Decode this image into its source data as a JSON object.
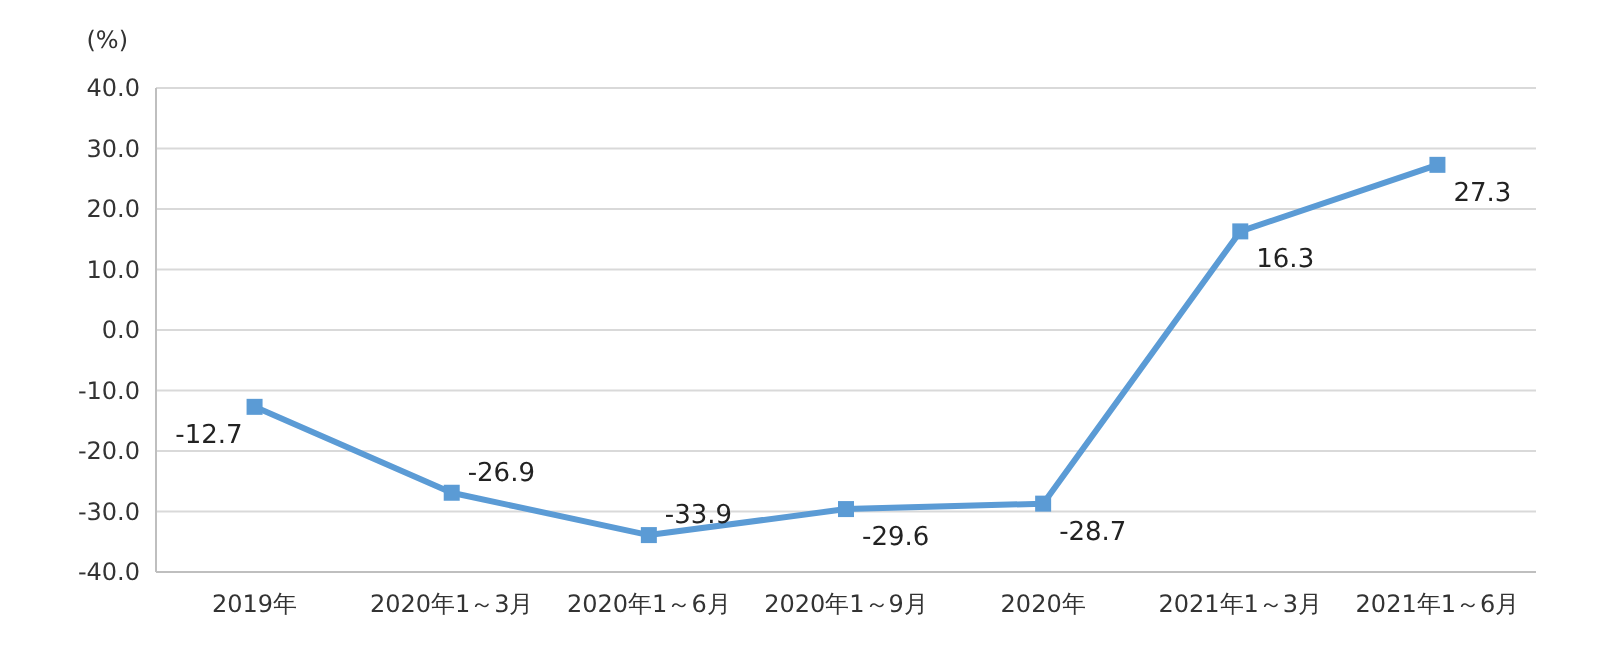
{
  "chart_data": {
    "type": "line",
    "ylabel": "(%)",
    "categories": [
      "2019年",
      "2020年1～3月",
      "2020年1～6月",
      "2020年1～9月",
      "2020年",
      "2021年1～3月",
      "2021年1～6月"
    ],
    "series": [
      {
        "color": "#5b9bd5",
        "values": [
          -12.7,
          -26.9,
          -33.9,
          -29.6,
          -28.7,
          16.3,
          27.3
        ]
      }
    ],
    "ylim": [
      -40,
      40
    ],
    "yticks": [
      {
        "value": -40,
        "label": "-40.0"
      },
      {
        "value": -30,
        "label": "-30.0"
      },
      {
        "value": -20,
        "label": "-20.0"
      },
      {
        "value": -10,
        "label": "-10.0"
      },
      {
        "value": 0,
        "label": "0.0"
      },
      {
        "value": 10,
        "label": "10.0"
      },
      {
        "value": 20,
        "label": "20.0"
      },
      {
        "value": 30,
        "label": "30.0"
      },
      {
        "value": 40,
        "label": "40.0"
      }
    ],
    "grid": "y",
    "marker": "square",
    "line_style": "solid",
    "data_labels": true
  }
}
